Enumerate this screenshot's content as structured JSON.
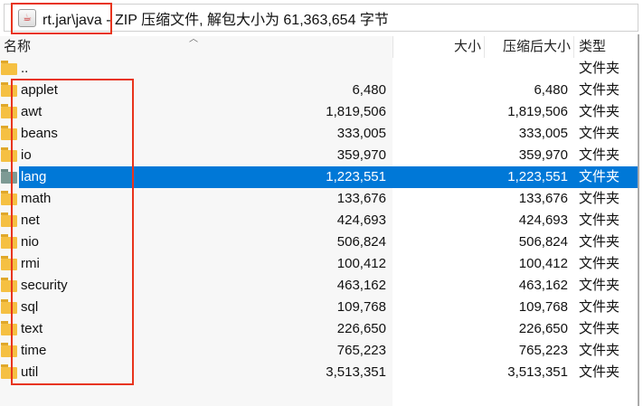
{
  "address": {
    "title": "rt.jar\\java - ZIP 压缩文件, 解包大小为 61,363,654 字节"
  },
  "columns": {
    "name": "名称",
    "size": "大小",
    "packed": "压缩后大小",
    "type": "类型"
  },
  "rows": [
    {
      "name": "..",
      "size": "",
      "packed": "",
      "type": "文件夹"
    },
    {
      "name": "applet",
      "size": "6,480",
      "packed": "6,480",
      "type": "文件夹"
    },
    {
      "name": "awt",
      "size": "1,819,506",
      "packed": "1,819,506",
      "type": "文件夹"
    },
    {
      "name": "beans",
      "size": "333,005",
      "packed": "333,005",
      "type": "文件夹"
    },
    {
      "name": "io",
      "size": "359,970",
      "packed": "359,970",
      "type": "文件夹"
    },
    {
      "name": "lang",
      "size": "1,223,551",
      "packed": "1,223,551",
      "type": "文件夹",
      "selected": true
    },
    {
      "name": "math",
      "size": "133,676",
      "packed": "133,676",
      "type": "文件夹"
    },
    {
      "name": "net",
      "size": "424,693",
      "packed": "424,693",
      "type": "文件夹"
    },
    {
      "name": "nio",
      "size": "506,824",
      "packed": "506,824",
      "type": "文件夹"
    },
    {
      "name": "rmi",
      "size": "100,412",
      "packed": "100,412",
      "type": "文件夹"
    },
    {
      "name": "security",
      "size": "463,162",
      "packed": "463,162",
      "type": "文件夹"
    },
    {
      "name": "sql",
      "size": "109,768",
      "packed": "109,768",
      "type": "文件夹"
    },
    {
      "name": "text",
      "size": "226,650",
      "packed": "226,650",
      "type": "文件夹"
    },
    {
      "name": "time",
      "size": "765,223",
      "packed": "765,223",
      "type": "文件夹"
    },
    {
      "name": "util",
      "size": "3,513,351",
      "packed": "3,513,351",
      "type": "文件夹"
    }
  ],
  "colors": {
    "selection": "#0078d7",
    "highlight_box": "#e8341c",
    "folder": "#f5c042"
  }
}
